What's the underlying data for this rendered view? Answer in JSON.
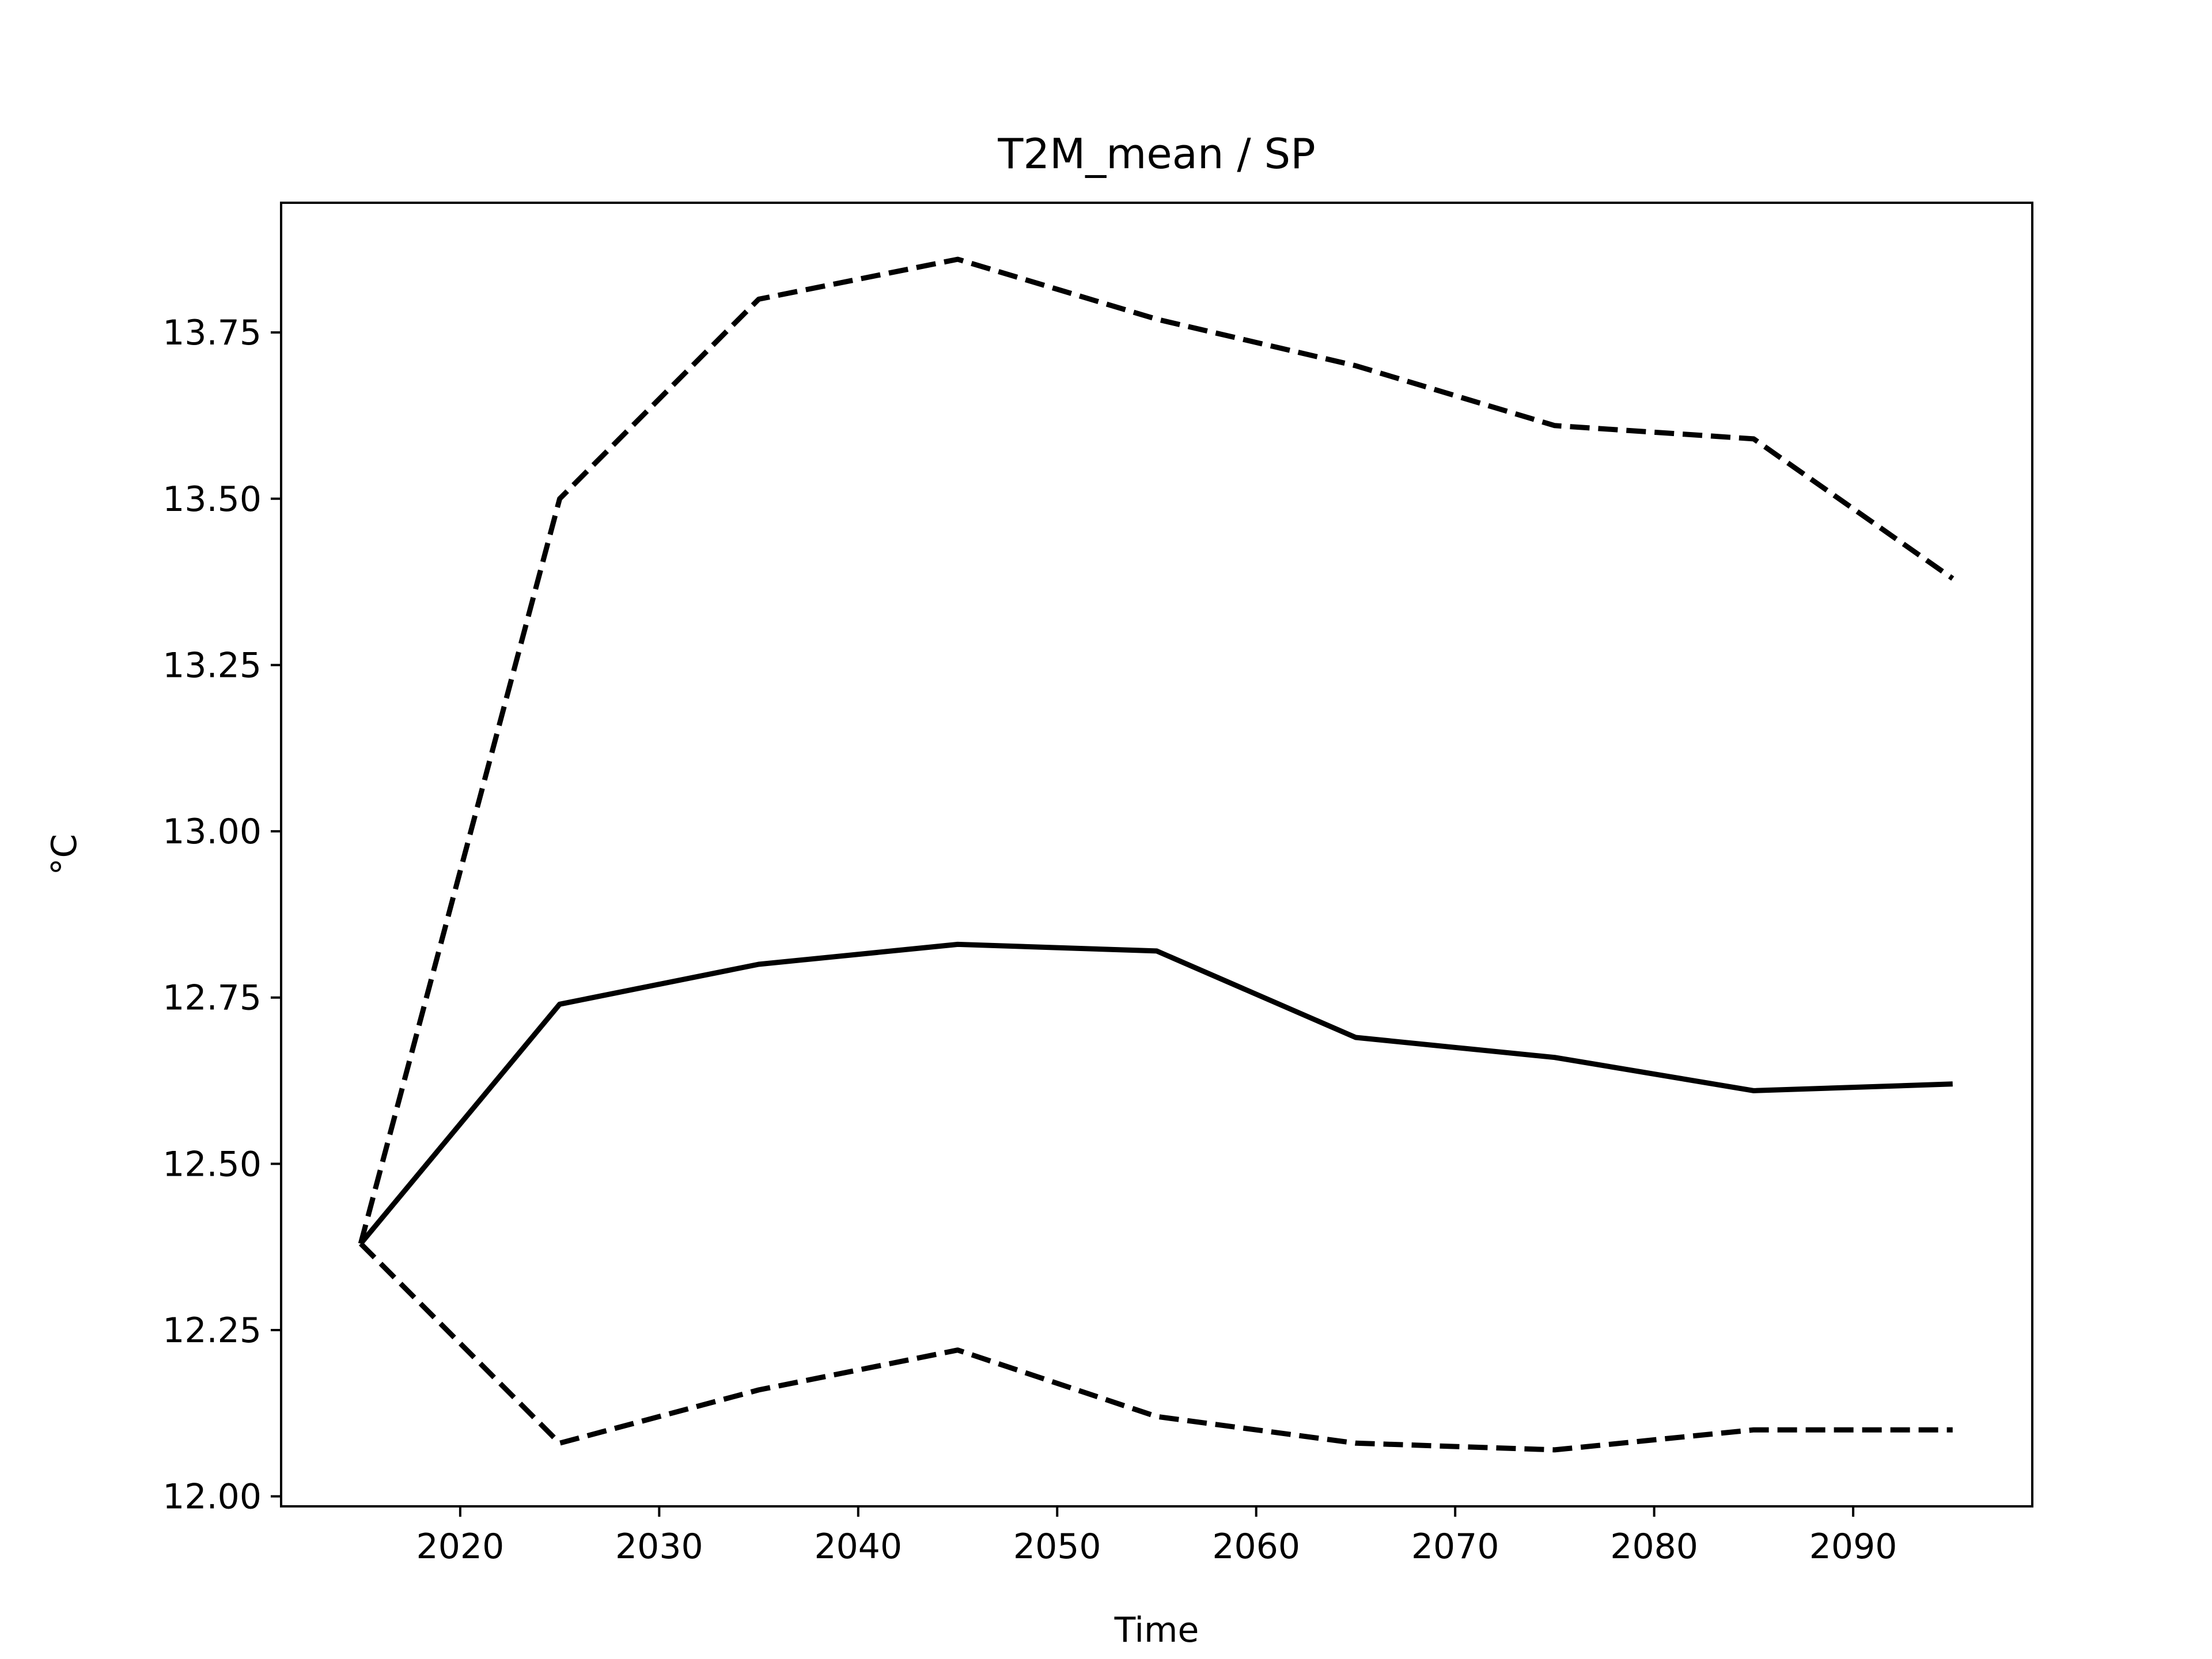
{
  "chart_data": {
    "type": "line",
    "title": "T2M_mean / SP",
    "xlabel": "Time",
    "ylabel": "°C",
    "xlim": [
      2011,
      2099
    ],
    "ylim": [
      11.985,
      13.945
    ],
    "x": [
      2015,
      2025,
      2035,
      2045,
      2055,
      2065,
      2075,
      2085,
      2095
    ],
    "series": [
      {
        "style": "dashed",
        "color": "#000000",
        "values": [
          12.38,
          13.5,
          13.8,
          13.86,
          13.77,
          13.7,
          13.61,
          13.59,
          13.38
        ]
      },
      {
        "style": "solid",
        "color": "#000000",
        "values": [
          12.38,
          12.74,
          12.8,
          12.83,
          12.82,
          12.69,
          12.66,
          12.61,
          12.62
        ]
      },
      {
        "style": "dashed",
        "color": "#000000",
        "values": [
          12.38,
          12.08,
          12.16,
          12.22,
          12.12,
          12.08,
          12.07,
          12.1,
          12.1
        ]
      }
    ],
    "xticks": [
      2020,
      2030,
      2040,
      2050,
      2060,
      2070,
      2080,
      2090
    ],
    "xtick_labels": [
      "2020",
      "2030",
      "2040",
      "2050",
      "2060",
      "2070",
      "2080",
      "2090"
    ],
    "yticks": [
      12.0,
      12.25,
      12.5,
      12.75,
      13.0,
      13.25,
      13.5,
      13.75
    ],
    "ytick_labels": [
      "12.00",
      "12.25",
      "12.50",
      "12.75",
      "13.00",
      "13.25",
      "13.50",
      "13.75"
    ],
    "grid": false,
    "legend": false
  }
}
